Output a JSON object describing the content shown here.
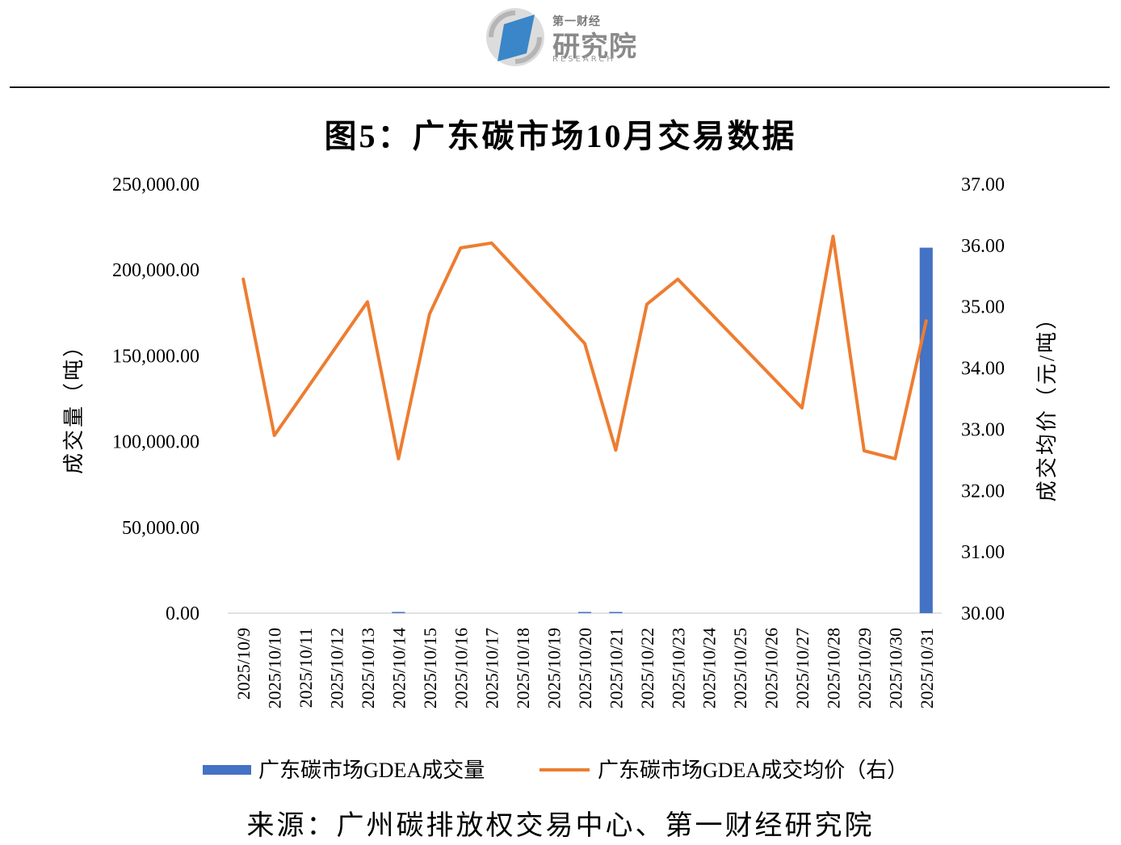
{
  "header": {
    "logo_top": "第一财经",
    "logo_main": "研究院",
    "logo_sub": "RESEARCH"
  },
  "title": "图5：广东碳市场10月交易数据",
  "source": "来源：广州碳排放权交易中心、第一财经研究院",
  "colors": {
    "bar": "#4472C4",
    "line": "#ED7D31"
  },
  "chart_data": {
    "type": "bar",
    "categories": [
      "2025/10/9",
      "2025/10/10",
      "2025/10/11",
      "2025/10/12",
      "2025/10/13",
      "2025/10/14",
      "2025/10/15",
      "2025/10/16",
      "2025/10/17",
      "2025/10/18",
      "2025/10/19",
      "2025/10/20",
      "2025/10/21",
      "2025/10/22",
      "2025/10/23",
      "2025/10/24",
      "2025/10/25",
      "2025/10/26",
      "2025/10/27",
      "2025/10/28",
      "2025/10/29",
      "2025/10/30",
      "2025/10/31"
    ],
    "series": [
      {
        "name": "广东碳市场GDEA成交量",
        "type": "bar",
        "axis": "left",
        "values": [
          null,
          null,
          null,
          null,
          null,
          350,
          null,
          null,
          null,
          null,
          null,
          300,
          300,
          null,
          null,
          null,
          null,
          null,
          null,
          null,
          null,
          null,
          213000
        ]
      },
      {
        "name": "广东碳市场GDEA成交均价（右）",
        "type": "line",
        "axis": "right",
        "values": [
          35.45,
          32.9,
          null,
          null,
          35.08,
          32.52,
          34.88,
          35.96,
          36.04,
          null,
          null,
          34.4,
          32.66,
          35.04,
          35.45,
          null,
          null,
          null,
          33.35,
          36.15,
          32.65,
          32.52,
          34.77
        ]
      }
    ],
    "ylabel": "成交量（吨）",
    "y2label": "成交均价（元/吨）",
    "ylim": [
      0,
      250000
    ],
    "y2lim": [
      30,
      37
    ],
    "yticks": [
      "0.00",
      "50,000.00",
      "100,000.00",
      "150,000.00",
      "200,000.00",
      "250,000.00"
    ],
    "y2ticks": [
      "30.00",
      "31.00",
      "32.00",
      "33.00",
      "34.00",
      "35.00",
      "36.00",
      "37.00"
    ],
    "grid": false,
    "legend": "bottom"
  }
}
